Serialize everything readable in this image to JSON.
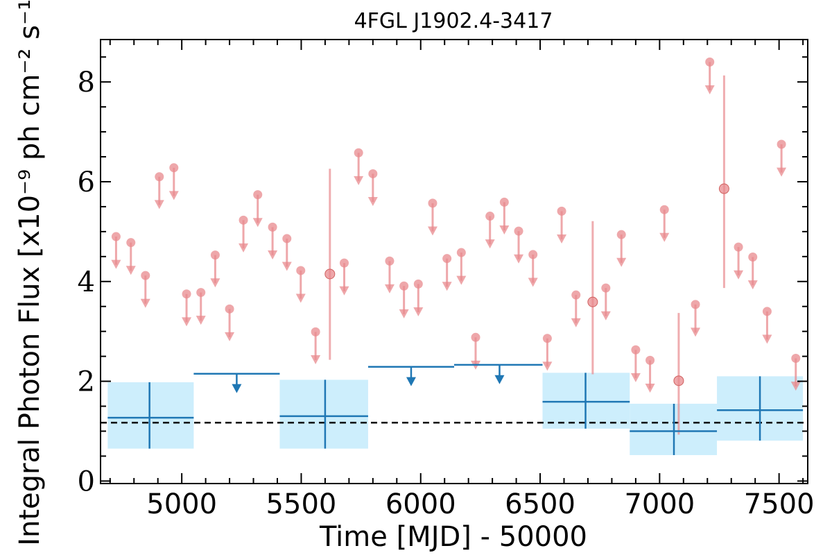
{
  "chart_data": {
    "type": "scatter",
    "title": "4FGL J1902.4-3417",
    "xlabel": "Time [MJD] - 50000",
    "ylabel": "Integral Photon Flux [x10⁻⁹ ph cm⁻² s⁻¹]",
    "xlim": [
      4660,
      7620
    ],
    "ylim": [
      -0.05,
      8.85
    ],
    "xticks": [
      5000,
      5500,
      6000,
      6500,
      7000,
      7500
    ],
    "yticks": [
      0,
      2,
      4,
      6,
      8
    ],
    "grid": false,
    "reference_line": {
      "value": 1.17,
      "style": "dashed",
      "color": "#000000"
    },
    "colors": {
      "short_bins": "#e88a8e",
      "long_bins": "#1f77b4",
      "band_fill": "#cdeefc"
    },
    "series": [
      {
        "bin": "short",
        "upper_limits": [
          [
            4725,
            4.9
          ],
          [
            4787,
            4.78
          ],
          [
            4848,
            4.12
          ],
          [
            4906,
            6.1
          ],
          [
            4967,
            6.28
          ],
          [
            5020,
            3.75
          ],
          [
            5080,
            3.78
          ],
          [
            5140,
            4.53
          ],
          [
            5200,
            3.45
          ],
          [
            5258,
            5.23
          ],
          [
            5318,
            5.74
          ],
          [
            5380,
            5.09
          ],
          [
            5440,
            4.86
          ],
          [
            5498,
            4.22
          ],
          [
            5560,
            2.99
          ],
          [
            5680,
            4.37
          ],
          [
            5740,
            6.58
          ],
          [
            5800,
            6.16
          ],
          [
            5870,
            4.41
          ],
          [
            5930,
            3.91
          ],
          [
            5990,
            3.95
          ],
          [
            6050,
            5.57
          ],
          [
            6110,
            4.46
          ],
          [
            6170,
            4.58
          ],
          [
            6230,
            2.88
          ],
          [
            6290,
            5.31
          ],
          [
            6350,
            5.59
          ],
          [
            6410,
            5.01
          ],
          [
            6470,
            4.54
          ],
          [
            6530,
            2.86
          ],
          [
            6590,
            5.41
          ],
          [
            6650,
            3.73
          ],
          [
            6775,
            3.87
          ],
          [
            6840,
            4.94
          ],
          [
            6900,
            2.63
          ],
          [
            6960,
            2.42
          ],
          [
            7020,
            5.44
          ],
          [
            7150,
            3.54
          ],
          [
            7210,
            8.4
          ],
          [
            7330,
            4.69
          ],
          [
            7390,
            4.49
          ],
          [
            7450,
            3.4
          ],
          [
            7510,
            6.75
          ],
          [
            7570,
            2.46
          ]
        ],
        "detections": [
          {
            "x": 5620,
            "y": 4.15,
            "ylow": 2.43,
            "yhigh": 6.26
          },
          {
            "x": 6720,
            "y": 3.59,
            "ylow": 2.14,
            "yhigh": 5.21
          },
          {
            "x": 7080,
            "y": 2.01,
            "ylow": 0.93,
            "yhigh": 3.37
          },
          {
            "x": 7270,
            "y": 5.86,
            "ylow": 3.87,
            "yhigh": 8.13
          }
        ]
      },
      {
        "bin": "long",
        "detections": [
          {
            "x": 4865,
            "xlow": 4690,
            "xhigh": 5050,
            "y": 1.27,
            "ylow": 0.65,
            "yhigh": 1.98
          },
          {
            "x": 5600,
            "xlow": 5410,
            "xhigh": 5780,
            "y": 1.3,
            "ylow": 0.65,
            "yhigh": 2.03
          },
          {
            "x": 6690,
            "xlow": 6510,
            "xhigh": 6875,
            "y": 1.59,
            "ylow": 1.05,
            "yhigh": 2.17
          },
          {
            "x": 7060,
            "xlow": 6875,
            "xhigh": 7240,
            "y": 1.0,
            "ylow": 0.52,
            "yhigh": 1.55
          },
          {
            "x": 7420,
            "xlow": 7240,
            "xhigh": 7600,
            "y": 1.42,
            "ylow": 0.81,
            "yhigh": 2.1
          }
        ],
        "upper_limits": [
          {
            "x": 5230,
            "xlow": 5050,
            "xhigh": 5410,
            "y": 2.15
          },
          {
            "x": 5960,
            "xlow": 5780,
            "xhigh": 6140,
            "y": 2.29
          },
          {
            "x": 6330,
            "xlow": 6140,
            "xhigh": 6510,
            "y": 2.33
          }
        ]
      }
    ]
  }
}
